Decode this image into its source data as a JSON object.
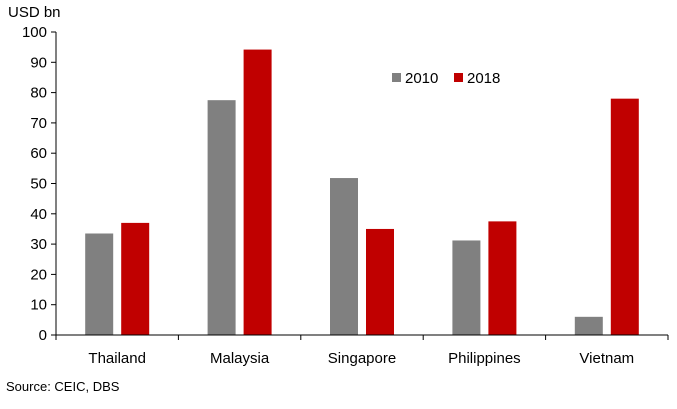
{
  "chart_data": {
    "type": "bar",
    "unit_label": "USD bn",
    "categories": [
      "Thailand",
      "Malaysia",
      "Singapore",
      "Philippines",
      "Vietnam"
    ],
    "series": [
      {
        "name": "2010",
        "color": "#808080",
        "values": [
          33.5,
          77.5,
          51.8,
          31.2,
          6.0
        ]
      },
      {
        "name": "2018",
        "color": "#c00000",
        "values": [
          37.0,
          94.2,
          35.0,
          37.5,
          78.0
        ]
      }
    ],
    "ylim": [
      0,
      100
    ],
    "yticks": [
      0,
      10,
      20,
      30,
      40,
      50,
      60,
      70,
      80,
      90,
      100
    ],
    "grid": false,
    "legend": "top-right"
  },
  "source": "Source: CEIC, DBS"
}
